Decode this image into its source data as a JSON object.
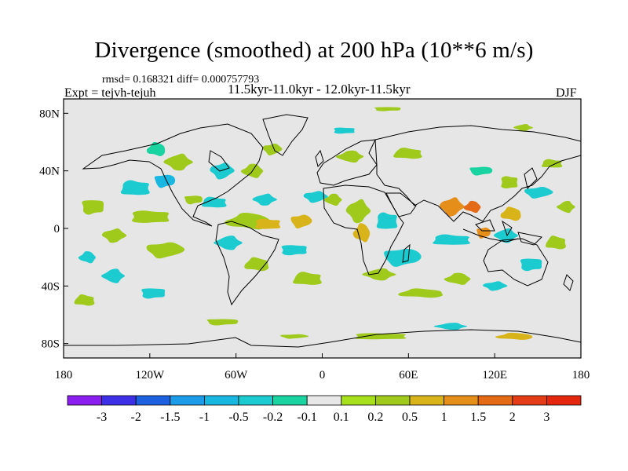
{
  "title": "Divergence (smoothed) at 200 hPa (10**6 m/s)",
  "stats_text": "rmsd= 0.168321 diff= 0.000757793",
  "expt_label": "Expt = tejvh-tejuh",
  "period_label": "11.5kyr-11.0kyr - 12.0kyr-11.5kyr",
  "season_label": "DJF",
  "chart_data": {
    "type": "heatmap",
    "title": "Divergence (smoothed) at 200 hPa (10**6 m/s)",
    "projection": "cylindrical equidistant",
    "xlim": [
      -180,
      180
    ],
    "ylim": [
      -90,
      90
    ],
    "x_ticks": [
      {
        "value": -180,
        "label": "180"
      },
      {
        "value": -120,
        "label": "120W"
      },
      {
        "value": -60,
        "label": "60W"
      },
      {
        "value": 0,
        "label": "0"
      },
      {
        "value": 60,
        "label": "60E"
      },
      {
        "value": 120,
        "label": "120E"
      },
      {
        "value": 180,
        "label": "180"
      }
    ],
    "y_ticks": [
      {
        "value": 80,
        "label": "80N"
      },
      {
        "value": 40,
        "label": "40N"
      },
      {
        "value": 0,
        "label": "0"
      },
      {
        "value": -40,
        "label": "40S"
      },
      {
        "value": -80,
        "label": "80S"
      }
    ],
    "colorbar": {
      "labels": [
        "-3",
        "-2",
        "-1.5",
        "-1",
        "-0.5",
        "-0.2",
        "-0.1",
        "0.1",
        "0.2",
        "0.5",
        "1",
        "1.5",
        "2",
        "3"
      ],
      "colors": [
        "#8b1ff0",
        "#3c2fe6",
        "#1c62e0",
        "#1c9be8",
        "#17b7e2",
        "#1ccbd0",
        "#19d3a0",
        "#e8e8e8",
        "#a6df1c",
        "#9fca1c",
        "#d8b41a",
        "#e58e1a",
        "#e46a16",
        "#e43c16",
        "#e5260f"
      ]
    },
    "anomaly_regions": [
      {
        "lon": -160,
        "lat": 15,
        "rlon": 10,
        "rlat": 7,
        "value": 0.2
      },
      {
        "lon": -145,
        "lat": -5,
        "rlon": 10,
        "rlat": 6,
        "value": 0.2
      },
      {
        "lon": -163,
        "lat": -20,
        "rlon": 8,
        "rlat": 5,
        "value": -0.3
      },
      {
        "lon": -130,
        "lat": 28,
        "rlon": 14,
        "rlat": 7,
        "value": -0.3
      },
      {
        "lon": -110,
        "lat": 33,
        "rlon": 9,
        "rlat": 6,
        "value": -0.6
      },
      {
        "lon": -100,
        "lat": 46,
        "rlon": 12,
        "rlat": 7,
        "value": 0.2
      },
      {
        "lon": -115,
        "lat": 55,
        "rlon": 9,
        "rlat": 6,
        "value": -0.2
      },
      {
        "lon": -120,
        "lat": 8,
        "rlon": 18,
        "rlat": 6,
        "value": 0.2
      },
      {
        "lon": -110,
        "lat": -15,
        "rlon": 16,
        "rlat": 7,
        "value": 0.3
      },
      {
        "lon": -145,
        "lat": -33,
        "rlon": 10,
        "rlat": 6,
        "value": -0.3
      },
      {
        "lon": -165,
        "lat": -50,
        "rlon": 10,
        "rlat": 5,
        "value": 0.2
      },
      {
        "lon": -118,
        "lat": -45,
        "rlon": 11,
        "rlat": 5,
        "value": -0.3
      },
      {
        "lon": -70,
        "lat": 40,
        "rlon": 10,
        "rlat": 7,
        "value": -0.3
      },
      {
        "lon": -48,
        "lat": 40,
        "rlon": 10,
        "rlat": 6,
        "value": 0.2
      },
      {
        "lon": -75,
        "lat": 18,
        "rlon": 12,
        "rlat": 5,
        "value": -0.3
      },
      {
        "lon": -90,
        "lat": 20,
        "rlon": 8,
        "rlat": 4,
        "value": 0.2
      },
      {
        "lon": -40,
        "lat": 20,
        "rlon": 10,
        "rlat": 5,
        "value": -0.3
      },
      {
        "lon": -50,
        "lat": 5,
        "rlon": 22,
        "rlat": 7,
        "value": 0.2
      },
      {
        "lon": -38,
        "lat": 3,
        "rlon": 12,
        "rlat": 5,
        "value": 0.6
      },
      {
        "lon": -15,
        "lat": 5,
        "rlon": 9,
        "rlat": 6,
        "value": 0.5
      },
      {
        "lon": -65,
        "lat": -10,
        "rlon": 12,
        "rlat": 6,
        "value": -0.3
      },
      {
        "lon": -45,
        "lat": -25,
        "rlon": 12,
        "rlat": 6,
        "value": 0.2
      },
      {
        "lon": -20,
        "lat": -15,
        "rlon": 12,
        "rlat": 5,
        "value": -0.3
      },
      {
        "lon": -5,
        "lat": 22,
        "rlon": 10,
        "rlat": 5,
        "value": -0.3
      },
      {
        "lon": 8,
        "lat": 20,
        "rlon": 8,
        "rlat": 5,
        "value": 0.2
      },
      {
        "lon": -10,
        "lat": -35,
        "rlon": 14,
        "rlat": 6,
        "value": 0.2
      },
      {
        "lon": -70,
        "lat": -65,
        "rlon": 14,
        "rlat": 3,
        "value": 0.2
      },
      {
        "lon": 25,
        "lat": 12,
        "rlon": 10,
        "rlat": 10,
        "value": 0.2
      },
      {
        "lon": 28,
        "lat": -3,
        "rlon": 8,
        "rlat": 8,
        "value": 0.6
      },
      {
        "lon": 45,
        "lat": 5,
        "rlon": 10,
        "rlat": 8,
        "value": -0.3
      },
      {
        "lon": 55,
        "lat": -20,
        "rlon": 16,
        "rlat": 8,
        "value": -0.3
      },
      {
        "lon": 40,
        "lat": -32,
        "rlon": 14,
        "rlat": 5,
        "value": 0.2
      },
      {
        "lon": 70,
        "lat": -45,
        "rlon": 22,
        "rlat": 4,
        "value": 0.2
      },
      {
        "lon": 15,
        "lat": 68,
        "rlon": 10,
        "rlat": 3,
        "value": -0.3
      },
      {
        "lon": -35,
        "lat": 55,
        "rlon": 8,
        "rlat": 5,
        "value": 0.2
      },
      {
        "lon": 20,
        "lat": 50,
        "rlon": 12,
        "rlat": 5,
        "value": 0.2
      },
      {
        "lon": 60,
        "lat": 52,
        "rlon": 14,
        "rlat": 5,
        "value": 0.2
      },
      {
        "lon": 45,
        "lat": 83,
        "rlon": 12,
        "rlat": 2,
        "value": 0.2
      },
      {
        "lon": 90,
        "lat": 15,
        "rlon": 10,
        "rlat": 8,
        "value": 1.0
      },
      {
        "lon": 105,
        "lat": 15,
        "rlon": 8,
        "rlat": 5,
        "value": 1.6
      },
      {
        "lon": 90,
        "lat": -8,
        "rlon": 18,
        "rlat": 5,
        "value": -0.3
      },
      {
        "lon": 112,
        "lat": -3,
        "rlon": 6,
        "rlat": 5,
        "value": 1.1
      },
      {
        "lon": 128,
        "lat": -5,
        "rlon": 10,
        "rlat": 6,
        "value": -0.3
      },
      {
        "lon": 132,
        "lat": 10,
        "rlon": 10,
        "rlat": 6,
        "value": 0.6
      },
      {
        "lon": 130,
        "lat": 32,
        "rlon": 8,
        "rlat": 6,
        "value": 0.2
      },
      {
        "lon": 150,
        "lat": 25,
        "rlon": 12,
        "rlat": 5,
        "value": -0.3
      },
      {
        "lon": 170,
        "lat": 15,
        "rlon": 8,
        "rlat": 5,
        "value": 0.2
      },
      {
        "lon": 163,
        "lat": -10,
        "rlon": 10,
        "rlat": 6,
        "value": 0.3
      },
      {
        "lon": 145,
        "lat": -25,
        "rlon": 10,
        "rlat": 6,
        "value": -0.3
      },
      {
        "lon": 120,
        "lat": -40,
        "rlon": 10,
        "rlat": 4,
        "value": -0.3
      },
      {
        "lon": 95,
        "lat": -35,
        "rlon": 12,
        "rlat": 5,
        "value": 0.2
      },
      {
        "lon": 160,
        "lat": 45,
        "rlon": 10,
        "rlat": 4,
        "value": 0.2
      },
      {
        "lon": 110,
        "lat": 40,
        "rlon": 10,
        "rlat": 4,
        "value": -0.2
      },
      {
        "lon": 140,
        "lat": 70,
        "rlon": 8,
        "rlat": 3,
        "value": 0.2
      },
      {
        "lon": 135,
        "lat": -75,
        "rlon": 18,
        "rlat": 3,
        "value": 0.5
      },
      {
        "lon": 40,
        "lat": -75,
        "rlon": 25,
        "rlat": 3,
        "value": 0.2
      },
      {
        "lon": -20,
        "lat": -75,
        "rlon": 12,
        "rlat": 2,
        "value": 0.2
      },
      {
        "lon": 90,
        "lat": -68,
        "rlon": 14,
        "rlat": 3,
        "value": -0.3
      }
    ]
  }
}
